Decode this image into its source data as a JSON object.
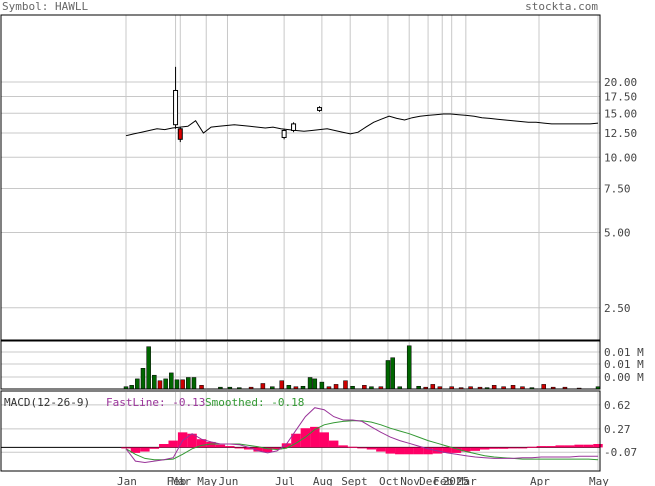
{
  "header": {
    "symbol_label": "Symbol: HAWLL",
    "site_label": "stockta.com"
  },
  "chart_data": [
    {
      "type": "candlestick",
      "panel": "price",
      "scale": "log",
      "ylim": [
        2.0,
        30.0
      ],
      "price_ticks": [
        "20.00",
        "17.50",
        "15.00",
        "12.50",
        "10.00",
        "7.50",
        "5.00",
        "2.50"
      ],
      "price_tick_values": [
        20.0,
        17.5,
        15.0,
        12.5,
        10.0,
        7.5,
        5.0,
        2.5
      ],
      "x_labels": [
        "Jan",
        "Feb",
        "Mar",
        "May",
        "Jun",
        "Jul",
        "Aug",
        "Sept",
        "Oct",
        "Nov",
        "Dec",
        "Feb",
        "2025",
        "Mar",
        "Apr",
        "May"
      ],
      "x_label_positions": [
        0.0,
        0.105,
        0.115,
        0.17,
        0.215,
        0.335,
        0.415,
        0.475,
        0.555,
        0.6,
        0.64,
        0.67,
        0.69,
        0.72,
        0.875,
        1.0
      ],
      "close_series": [
        12.2,
        12.4,
        12.6,
        12.8,
        13.0,
        12.9,
        13.1,
        13.2,
        13.3,
        14.0,
        12.5,
        13.2,
        13.3,
        13.4,
        13.5,
        13.4,
        13.3,
        13.2,
        13.1,
        13.2,
        13.0,
        12.9,
        12.8,
        12.7,
        12.8,
        12.9,
        13.0,
        12.8,
        12.6,
        12.4,
        12.6,
        13.2,
        13.8,
        14.2,
        14.6,
        14.3,
        14.1,
        14.4,
        14.6,
        14.7,
        14.8,
        14.9,
        14.9,
        14.8,
        14.7,
        14.6,
        14.4,
        14.3,
        14.2,
        14.1,
        14.0,
        13.9,
        13.8,
        13.8,
        13.7,
        13.6,
        13.6,
        13.6,
        13.6,
        13.6,
        13.6,
        13.7
      ],
      "candles": [
        {
          "pos": 0.105,
          "open": 13.5,
          "close": 18.5,
          "high": 23.0,
          "low": 13.0,
          "up": true
        },
        {
          "pos": 0.115,
          "open": 13.0,
          "close": 11.8,
          "high": 13.2,
          "low": 11.5,
          "up": false
        },
        {
          "pos": 0.335,
          "open": 12.0,
          "close": 12.8,
          "high": 13.0,
          "low": 11.8,
          "up": true
        },
        {
          "pos": 0.355,
          "open": 12.8,
          "close": 13.6,
          "high": 13.8,
          "low": 12.6,
          "up": true
        },
        {
          "pos": 0.41,
          "open": 15.4,
          "close": 15.8,
          "high": 16.0,
          "low": 15.2,
          "up": true
        }
      ]
    },
    {
      "type": "bar",
      "panel": "volume",
      "volume_ticks": [
        "0.01 M",
        "0.01 M",
        "0.00 M"
      ],
      "bars": [
        {
          "pos": 0.0,
          "v": 0.05,
          "up": true
        },
        {
          "pos": 0.012,
          "v": 0.08,
          "up": true
        },
        {
          "pos": 0.024,
          "v": 0.22,
          "up": true
        },
        {
          "pos": 0.036,
          "v": 0.45,
          "up": true
        },
        {
          "pos": 0.048,
          "v": 0.92,
          "up": true
        },
        {
          "pos": 0.06,
          "v": 0.3,
          "up": true
        },
        {
          "pos": 0.072,
          "v": 0.18,
          "up": false
        },
        {
          "pos": 0.084,
          "v": 0.22,
          "up": true
        },
        {
          "pos": 0.096,
          "v": 0.35,
          "up": true
        },
        {
          "pos": 0.108,
          "v": 0.2,
          "up": true
        },
        {
          "pos": 0.12,
          "v": 0.2,
          "up": false
        },
        {
          "pos": 0.132,
          "v": 0.25,
          "up": true
        },
        {
          "pos": 0.144,
          "v": 0.25,
          "up": true
        },
        {
          "pos": 0.16,
          "v": 0.08,
          "up": false
        },
        {
          "pos": 0.2,
          "v": 0.04,
          "up": true
        },
        {
          "pos": 0.22,
          "v": 0.04,
          "up": true
        },
        {
          "pos": 0.24,
          "v": 0.03,
          "up": true
        },
        {
          "pos": 0.265,
          "v": 0.04,
          "up": false
        },
        {
          "pos": 0.29,
          "v": 0.12,
          "up": false
        },
        {
          "pos": 0.31,
          "v": 0.05,
          "up": true
        },
        {
          "pos": 0.33,
          "v": 0.18,
          "up": false
        },
        {
          "pos": 0.345,
          "v": 0.08,
          "up": true
        },
        {
          "pos": 0.36,
          "v": 0.05,
          "up": false
        },
        {
          "pos": 0.375,
          "v": 0.06,
          "up": true
        },
        {
          "pos": 0.39,
          "v": 0.25,
          "up": true
        },
        {
          "pos": 0.4,
          "v": 0.22,
          "up": true
        },
        {
          "pos": 0.415,
          "v": 0.15,
          "up": true
        },
        {
          "pos": 0.43,
          "v": 0.05,
          "up": false
        },
        {
          "pos": 0.445,
          "v": 0.1,
          "up": false
        },
        {
          "pos": 0.465,
          "v": 0.18,
          "up": false
        },
        {
          "pos": 0.48,
          "v": 0.06,
          "up": true
        },
        {
          "pos": 0.505,
          "v": 0.08,
          "up": false
        },
        {
          "pos": 0.52,
          "v": 0.05,
          "up": true
        },
        {
          "pos": 0.54,
          "v": 0.05,
          "up": false
        },
        {
          "pos": 0.555,
          "v": 0.62,
          "up": true
        },
        {
          "pos": 0.565,
          "v": 0.68,
          "up": true
        },
        {
          "pos": 0.58,
          "v": 0.05,
          "up": true
        },
        {
          "pos": 0.6,
          "v": 0.94,
          "up": true
        },
        {
          "pos": 0.62,
          "v": 0.06,
          "up": true
        },
        {
          "pos": 0.635,
          "v": 0.04,
          "up": false
        },
        {
          "pos": 0.65,
          "v": 0.1,
          "up": false
        },
        {
          "pos": 0.665,
          "v": 0.05,
          "up": false
        },
        {
          "pos": 0.69,
          "v": 0.05,
          "up": false
        },
        {
          "pos": 0.71,
          "v": 0.03,
          "up": false
        },
        {
          "pos": 0.73,
          "v": 0.05,
          "up": false
        },
        {
          "pos": 0.75,
          "v": 0.04,
          "up": false
        },
        {
          "pos": 0.765,
          "v": 0.03,
          "up": true
        },
        {
          "pos": 0.78,
          "v": 0.08,
          "up": false
        },
        {
          "pos": 0.8,
          "v": 0.05,
          "up": false
        },
        {
          "pos": 0.82,
          "v": 0.08,
          "up": false
        },
        {
          "pos": 0.84,
          "v": 0.05,
          "up": false
        },
        {
          "pos": 0.86,
          "v": 0.03,
          "up": true
        },
        {
          "pos": 0.885,
          "v": 0.1,
          "up": false
        },
        {
          "pos": 0.905,
          "v": 0.04,
          "up": false
        },
        {
          "pos": 0.93,
          "v": 0.04,
          "up": false
        },
        {
          "pos": 0.96,
          "v": 0.02,
          "up": false
        },
        {
          "pos": 1.0,
          "v": 0.05,
          "up": true
        }
      ]
    },
    {
      "type": "macd",
      "panel": "macd",
      "title": "MACD(12-26-9)",
      "fast_label": "FastLine: -0.13",
      "smoothed_label": "Smoothed: -0.18",
      "macd_ticks": [
        "0.62",
        "0.27",
        "-0.07"
      ],
      "macd_tick_values": [
        0.62,
        0.27,
        -0.07
      ],
      "ylim": [
        -0.3,
        0.75
      ],
      "fast_color": "#993399",
      "smooth_color": "#339933",
      "hist_color": "#ff0066",
      "positions": [
        0.0,
        0.02,
        0.04,
        0.06,
        0.08,
        0.1,
        0.12,
        0.14,
        0.16,
        0.18,
        0.2,
        0.22,
        0.24,
        0.26,
        0.28,
        0.3,
        0.32,
        0.34,
        0.36,
        0.38,
        0.4,
        0.42,
        0.44,
        0.46,
        0.48,
        0.5,
        0.52,
        0.54,
        0.56,
        0.58,
        0.6,
        0.62,
        0.64,
        0.66,
        0.68,
        0.7,
        0.72,
        0.74,
        0.76,
        0.78,
        0.8,
        0.82,
        0.84,
        0.86,
        0.88,
        0.9,
        0.92,
        0.94,
        0.96,
        0.98,
        1.0
      ],
      "fast": [
        -0.02,
        -0.2,
        -0.22,
        -0.2,
        -0.18,
        -0.15,
        0.1,
        0.2,
        0.12,
        0.08,
        0.05,
        0.05,
        0.04,
        0.0,
        -0.05,
        -0.08,
        -0.05,
        0.05,
        0.25,
        0.45,
        0.58,
        0.55,
        0.45,
        0.4,
        0.4,
        0.38,
        0.3,
        0.22,
        0.15,
        0.1,
        0.06,
        0.02,
        -0.02,
        -0.05,
        -0.08,
        -0.1,
        -0.12,
        -0.14,
        -0.15,
        -0.16,
        -0.16,
        -0.16,
        -0.15,
        -0.15,
        -0.14,
        -0.14,
        -0.14,
        -0.14,
        -0.13,
        -0.13,
        -0.13
      ],
      "smooth": [
        -0.02,
        -0.1,
        -0.16,
        -0.18,
        -0.18,
        -0.17,
        -0.1,
        -0.02,
        0.03,
        0.05,
        0.05,
        0.05,
        0.05,
        0.03,
        0.01,
        -0.02,
        -0.03,
        -0.01,
        0.06,
        0.15,
        0.26,
        0.33,
        0.36,
        0.38,
        0.39,
        0.39,
        0.37,
        0.33,
        0.28,
        0.24,
        0.2,
        0.15,
        0.1,
        0.06,
        0.02,
        -0.02,
        -0.06,
        -0.09,
        -0.12,
        -0.14,
        -0.15,
        -0.16,
        -0.17,
        -0.17,
        -0.17,
        -0.17,
        -0.17,
        -0.17,
        -0.17,
        -0.17,
        -0.18
      ],
      "hist": [
        0.0,
        -0.08,
        -0.06,
        -0.02,
        0.05,
        0.1,
        0.22,
        0.2,
        0.12,
        0.08,
        0.04,
        0.02,
        0.0,
        -0.03,
        -0.06,
        -0.07,
        -0.03,
        0.06,
        0.2,
        0.28,
        0.3,
        0.22,
        0.1,
        0.03,
        0.01,
        -0.01,
        -0.03,
        -0.06,
        -0.09,
        -0.1,
        -0.1,
        -0.1,
        -0.1,
        -0.09,
        -0.08,
        -0.08,
        -0.06,
        -0.05,
        -0.03,
        -0.02,
        -0.02,
        -0.01,
        0.0,
        0.01,
        0.02,
        0.02,
        0.03,
        0.03,
        0.04,
        0.04,
        0.05
      ]
    }
  ]
}
